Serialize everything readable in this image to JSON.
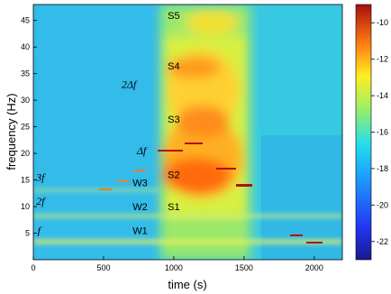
{
  "chart_data": {
    "type": "heatmap",
    "xlabel": "time (s)",
    "ylabel": "frequency (Hz)",
    "xlim": [
      0,
      2200
    ],
    "ylim": [
      0,
      48
    ],
    "x_ticks": [
      "0",
      "500",
      "1000",
      "1500",
      "2000"
    ],
    "y_ticks": [
      "5",
      "10",
      "15",
      "20",
      "25",
      "30",
      "35",
      "40",
      "45"
    ],
    "colorbar": {
      "range": [
        -23,
        -9
      ],
      "ticks": [
        "-10",
        "-12",
        "-14",
        "-16",
        "-18",
        "-20",
        "-22"
      ]
    },
    "annotations": [
      {
        "text": "S5",
        "x": 1000,
        "y": 46
      },
      {
        "text": "S4",
        "x": 1000,
        "y": 36.5
      },
      {
        "text": "S3",
        "x": 1000,
        "y": 26.5
      },
      {
        "text": "S2",
        "x": 1000,
        "y": 16
      },
      {
        "text": "S1",
        "x": 1000,
        "y": 10
      },
      {
        "text": "W3",
        "x": 760,
        "y": 14.5
      },
      {
        "text": "W2",
        "x": 760,
        "y": 10
      },
      {
        "text": "W1",
        "x": 760,
        "y": 5.5
      },
      {
        "text": "2Δf",
        "x": 680,
        "y": 33
      },
      {
        "text": "Δf",
        "x": 770,
        "y": 20.5
      },
      {
        "text": "3f",
        "x": 50,
        "y": 15.5
      },
      {
        "text": "2f",
        "x": 50,
        "y": 11
      },
      {
        "text": "f",
        "x": 40,
        "y": 5.5
      }
    ]
  }
}
